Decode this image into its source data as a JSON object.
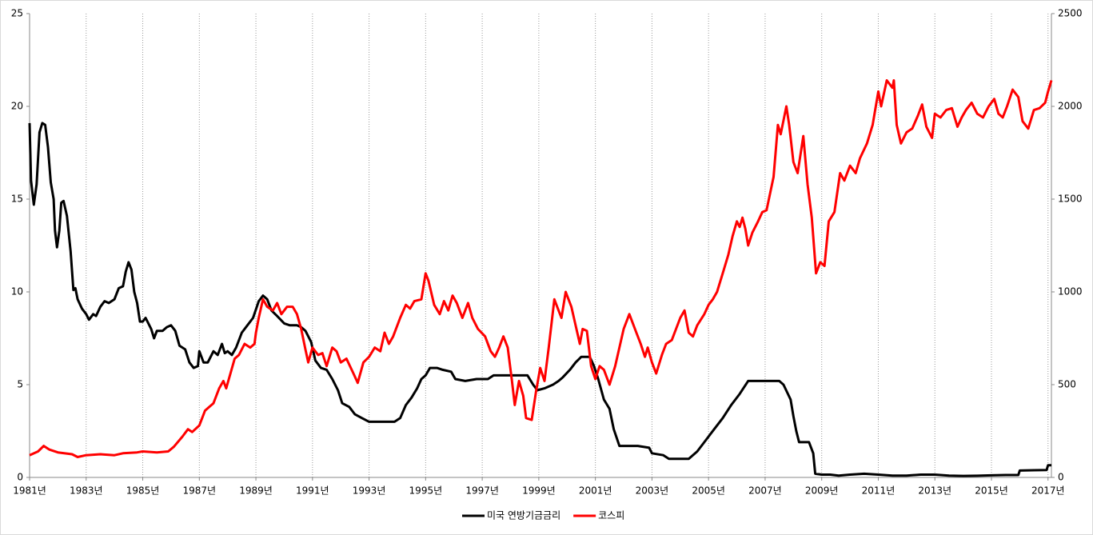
{
  "chart_data": {
    "type": "line",
    "xlim": [
      1981,
      2017.12
    ],
    "xticks": [
      {
        "value": 1981,
        "label": "1981년"
      },
      {
        "value": 1983,
        "label": "1983년"
      },
      {
        "value": 1985,
        "label": "1985년"
      },
      {
        "value": 1987,
        "label": "1987년"
      },
      {
        "value": 1989,
        "label": "1989년"
      },
      {
        "value": 1991,
        "label": "1991년"
      },
      {
        "value": 1993,
        "label": "1993년"
      },
      {
        "value": 1995,
        "label": "1995년"
      },
      {
        "value": 1997,
        "label": "1997년"
      },
      {
        "value": 1999,
        "label": "1999년"
      },
      {
        "value": 2001,
        "label": "2001년"
      },
      {
        "value": 2003,
        "label": "2003년"
      },
      {
        "value": 2005,
        "label": "2005년"
      },
      {
        "value": 2007,
        "label": "2007년"
      },
      {
        "value": 2009,
        "label": "2009년"
      },
      {
        "value": 2011,
        "label": "2011년"
      },
      {
        "value": 2013,
        "label": "2013년"
      },
      {
        "value": 2015,
        "label": "2015년"
      },
      {
        "value": 2017,
        "label": "2017년"
      }
    ],
    "ylim": [
      0,
      25
    ],
    "yticks": [
      0,
      5,
      10,
      15,
      20,
      25
    ],
    "y2lim": [
      0,
      2500
    ],
    "y2ticks": [
      0,
      500,
      1000,
      1500,
      2000,
      2500
    ],
    "grid": "x",
    "legend": "bottom",
    "series": [
      {
        "name": "미국 연방기금금리",
        "color": "#000000",
        "x": [
          1981.0,
          1981.05,
          1981.15,
          1981.25,
          1981.35,
          1981.45,
          1981.55,
          1981.65,
          1981.75,
          1981.85,
          1981.9,
          1981.97,
          1982.05,
          1982.12,
          1982.2,
          1982.32,
          1982.45,
          1982.55,
          1982.62,
          1982.7,
          1982.85,
          1983.0,
          1983.1,
          1983.25,
          1983.35,
          1983.5,
          1983.65,
          1983.8,
          1984.0,
          1984.15,
          1984.3,
          1984.4,
          1984.5,
          1984.6,
          1984.7,
          1984.8,
          1984.9,
          1985.0,
          1985.1,
          1985.3,
          1985.4,
          1985.5,
          1985.7,
          1985.85,
          1986.0,
          1986.15,
          1986.3,
          1986.5,
          1986.65,
          1986.8,
          1986.95,
          1987.0,
          1987.15,
          1987.3,
          1987.5,
          1987.65,
          1987.8,
          1987.9,
          1988.0,
          1988.15,
          1988.3,
          1988.5,
          1988.7,
          1988.9,
          1989.1,
          1989.25,
          1989.4,
          1989.55,
          1989.75,
          1990.0,
          1990.2,
          1990.45,
          1990.6,
          1990.75,
          1990.95,
          1991.1,
          1991.3,
          1991.5,
          1991.7,
          1991.9,
          1992.05,
          1992.3,
          1992.5,
          1992.75,
          1993.0,
          1993.3,
          1993.6,
          1993.9,
          1994.1,
          1994.3,
          1994.5,
          1994.7,
          1994.85,
          1995.0,
          1995.15,
          1995.4,
          1995.6,
          1995.9,
          1996.05,
          1996.4,
          1996.8,
          1997.2,
          1997.4,
          1997.8,
          1998.2,
          1998.6,
          1998.8,
          1998.95,
          1999.2,
          1999.5,
          1999.7,
          1999.85,
          2000.1,
          2000.3,
          2000.5,
          2000.8,
          2000.95,
          2001.1,
          2001.3,
          2001.5,
          2001.65,
          2001.85,
          2002.5,
          2002.9,
          2003.0,
          2003.4,
          2003.6,
          2004.0,
          2004.3,
          2004.6,
          2004.9,
          2005.2,
          2005.5,
          2005.8,
          2006.1,
          2006.4,
          2007.0,
          2007.5,
          2007.65,
          2007.9,
          2008.0,
          2008.1,
          2008.2,
          2008.55,
          2008.7,
          2008.77,
          2009.0,
          2009.3,
          2009.6,
          2010.0,
          2010.5,
          2011.0,
          2011.5,
          2012.0,
          2012.5,
          2013.0,
          2013.5,
          2014.0,
          2014.5,
          2015.0,
          2015.5,
          2015.95,
          2016.0,
          2016.5,
          2016.95,
          2017.0,
          2017.12
        ],
        "values": [
          19.1,
          16,
          14.7,
          15.8,
          18.6,
          19.1,
          19,
          17.8,
          15.9,
          15,
          13.3,
          12.4,
          13.3,
          14.8,
          14.9,
          14.1,
          12.2,
          10.1,
          10.2,
          9.6,
          9.1,
          8.8,
          8.5,
          8.8,
          8.7,
          9.2,
          9.5,
          9.4,
          9.6,
          10.2,
          10.3,
          11.1,
          11.6,
          11.2,
          10,
          9.4,
          8.4,
          8.4,
          8.6,
          8,
          7.5,
          7.9,
          7.9,
          8.1,
          8.2,
          7.9,
          7.1,
          6.9,
          6.2,
          5.9,
          6.0,
          6.8,
          6.2,
          6.2,
          6.8,
          6.6,
          7.2,
          6.7,
          6.8,
          6.6,
          7.0,
          7.8,
          8.2,
          8.6,
          9.5,
          9.8,
          9.6,
          9.0,
          8.7,
          8.3,
          8.2,
          8.2,
          8.1,
          7.9,
          7.3,
          6.3,
          5.9,
          5.8,
          5.3,
          4.7,
          4.0,
          3.8,
          3.4,
          3.2,
          3.0,
          3.0,
          3.0,
          3.0,
          3.2,
          3.9,
          4.3,
          4.8,
          5.3,
          5.5,
          5.9,
          5.9,
          5.8,
          5.7,
          5.3,
          5.2,
          5.3,
          5.3,
          5.5,
          5.5,
          5.5,
          5.5,
          5.0,
          4.7,
          4.8,
          5.0,
          5.2,
          5.4,
          5.8,
          6.2,
          6.5,
          6.5,
          6.0,
          5.3,
          4.2,
          3.7,
          2.6,
          1.7,
          1.7,
          1.6,
          1.3,
          1.2,
          1.0,
          1.0,
          1.0,
          1.4,
          2.0,
          2.6,
          3.2,
          3.9,
          4.5,
          5.2,
          5.2,
          5.2,
          5.0,
          4.2,
          3.3,
          2.5,
          1.9,
          1.9,
          1.3,
          0.2,
          0.15,
          0.15,
          0.1,
          0.15,
          0.2,
          0.15,
          0.1,
          0.1,
          0.15,
          0.15,
          0.1,
          0.08,
          0.09,
          0.11,
          0.13,
          0.13,
          0.37,
          0.39,
          0.4,
          0.66,
          0.66
        ]
      },
      {
        "name": "코스피",
        "color": "#ff0000",
        "axis": "y2",
        "x": [
          1981.0,
          1981.3,
          1981.5,
          1981.7,
          1982.0,
          1982.5,
          1982.7,
          1983.0,
          1983.5,
          1984.0,
          1984.3,
          1984.8,
          1985.0,
          1985.5,
          1985.9,
          1986.1,
          1986.4,
          1986.6,
          1986.75,
          1987.0,
          1987.2,
          1987.5,
          1987.7,
          1987.85,
          1987.95,
          1988.1,
          1988.25,
          1988.4,
          1988.6,
          1988.8,
          1988.95,
          1989.0,
          1989.1,
          1989.25,
          1989.4,
          1989.6,
          1989.75,
          1989.9,
          1990.1,
          1990.3,
          1990.45,
          1990.6,
          1990.75,
          1990.85,
          1991.0,
          1991.2,
          1991.35,
          1991.5,
          1991.7,
          1991.85,
          1992.0,
          1992.2,
          1992.45,
          1992.6,
          1992.8,
          1993.0,
          1993.2,
          1993.4,
          1993.55,
          1993.7,
          1993.85,
          1994.1,
          1994.3,
          1994.45,
          1994.6,
          1994.85,
          1995.0,
          1995.1,
          1995.3,
          1995.5,
          1995.65,
          1995.8,
          1995.95,
          1996.1,
          1996.3,
          1996.5,
          1996.65,
          1996.85,
          1997.1,
          1997.3,
          1997.45,
          1997.6,
          1997.75,
          1997.9,
          1998.05,
          1998.15,
          1998.3,
          1998.45,
          1998.55,
          1998.75,
          1998.9,
          1999.05,
          1999.2,
          1999.35,
          1999.55,
          1999.7,
          1999.8,
          1999.95,
          2000.15,
          2000.3,
          2000.45,
          2000.55,
          2000.7,
          2000.85,
          2001.0,
          2001.15,
          2001.3,
          2001.5,
          2001.7,
          2001.85,
          2002.0,
          2002.2,
          2002.45,
          2002.6,
          2002.75,
          2002.85,
          2003.0,
          2003.15,
          2003.35,
          2003.5,
          2003.7,
          2003.85,
          2004.0,
          2004.15,
          2004.3,
          2004.45,
          2004.6,
          2004.85,
          2005.0,
          2005.15,
          2005.3,
          2005.5,
          2005.7,
          2005.85,
          2006.0,
          2006.1,
          2006.2,
          2006.3,
          2006.4,
          2006.55,
          2006.75,
          2006.9,
          2007.05,
          2007.3,
          2007.45,
          2007.55,
          2007.75,
          2007.85,
          2008.0,
          2008.15,
          2008.35,
          2008.5,
          2008.65,
          2008.8,
          2008.95,
          2009.1,
          2009.25,
          2009.45,
          2009.65,
          2009.8,
          2010.0,
          2010.2,
          2010.35,
          2010.6,
          2010.8,
          2011.0,
          2011.1,
          2011.3,
          2011.5,
          2011.55,
          2011.65,
          2011.8,
          2012.0,
          2012.2,
          2012.4,
          2012.55,
          2012.7,
          2012.9,
          2013.0,
          2013.2,
          2013.4,
          2013.6,
          2013.8,
          2013.95,
          2014.1,
          2014.3,
          2014.5,
          2014.7,
          2014.9,
          2015.1,
          2015.25,
          2015.4,
          2015.55,
          2015.75,
          2015.95,
          2016.1,
          2016.3,
          2016.5,
          2016.7,
          2016.9,
          2017.0,
          2017.12
        ],
        "values": [
          120,
          140,
          170,
          150,
          135,
          125,
          110,
          120,
          125,
          120,
          130,
          135,
          140,
          135,
          140,
          165,
          220,
          260,
          245,
          280,
          360,
          400,
          480,
          520,
          480,
          560,
          640,
          660,
          720,
          700,
          720,
          780,
          860,
          960,
          920,
          900,
          940,
          880,
          920,
          920,
          880,
          800,
          690,
          620,
          700,
          660,
          670,
          600,
          700,
          680,
          620,
          640,
          560,
          510,
          620,
          650,
          700,
          680,
          780,
          720,
          760,
          860,
          930,
          910,
          950,
          960,
          1100,
          1060,
          930,
          880,
          950,
          900,
          980,
          940,
          860,
          940,
          860,
          800,
          760,
          680,
          650,
          700,
          760,
          700,
          520,
          390,
          520,
          440,
          320,
          310,
          460,
          590,
          520,
          700,
          960,
          900,
          860,
          1000,
          920,
          820,
          720,
          800,
          790,
          600,
          530,
          600,
          580,
          500,
          600,
          700,
          800,
          880,
          780,
          720,
          650,
          700,
          620,
          560,
          660,
          720,
          740,
          800,
          860,
          900,
          780,
          760,
          820,
          880,
          930,
          960,
          1000,
          1100,
          1200,
          1300,
          1380,
          1350,
          1400,
          1340,
          1250,
          1320,
          1380,
          1430,
          1440,
          1620,
          1900,
          1850,
          2000,
          1900,
          1700,
          1640,
          1840,
          1580,
          1400,
          1100,
          1160,
          1140,
          1380,
          1430,
          1640,
          1600,
          1680,
          1640,
          1720,
          1800,
          1900,
          2080,
          2000,
          2140,
          2100,
          2140,
          1900,
          1800,
          1860,
          1880,
          1950,
          2010,
          1890,
          1830,
          1960,
          1940,
          1980,
          1990,
          1890,
          1940,
          1980,
          2020,
          1960,
          1940,
          2000,
          2040,
          1960,
          1940,
          2000,
          2090,
          2050,
          1920,
          1880,
          1980,
          1990,
          2020,
          2080,
          2140
        ]
      }
    ]
  }
}
